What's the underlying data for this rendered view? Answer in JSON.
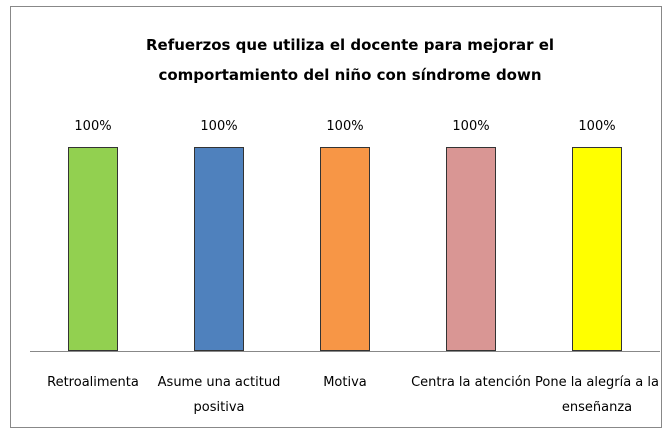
{
  "chart_data": {
    "type": "bar",
    "title": "Refuerzos que utiliza el docente para mejorar el comportamiento del niño con síndrome down",
    "categories": [
      "Retroalimenta",
      "Asume una actitud positiva",
      "Motiva",
      "Centra la atención",
      "Pone la alegría a la enseñanza"
    ],
    "values": [
      100,
      100,
      100,
      100,
      100
    ],
    "value_labels": [
      "100%",
      "100%",
      "100%",
      "100%",
      "100%"
    ],
    "colors": [
      "#92d050",
      "#4f81bd",
      "#f79646",
      "#d99694",
      "#ffff00"
    ]
  }
}
